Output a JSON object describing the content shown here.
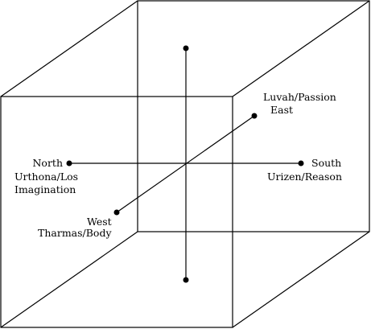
{
  "diagram": {
    "directions": {
      "north": "North",
      "south": "South",
      "east": "East",
      "west": "West"
    },
    "zoas": {
      "urthona": "Urthona/Los",
      "imagination": "Imagination",
      "urizen": "Urizen/Reason",
      "luvah": "Luvah/Passion",
      "tharmas": "Tharmas/Body"
    },
    "colors": {
      "stroke": "#000000",
      "background": "#ffffff"
    }
  }
}
